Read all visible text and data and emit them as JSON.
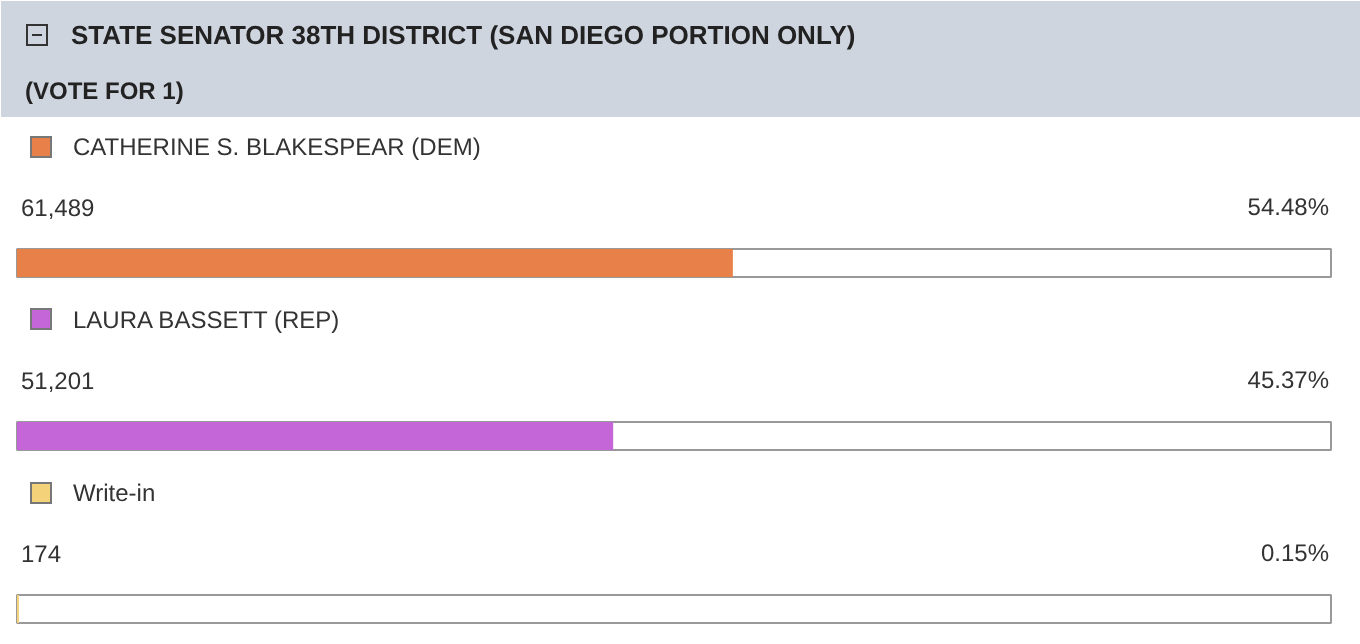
{
  "chart_data": {
    "type": "bar",
    "orientation": "horizontal",
    "title": "STATE SENATOR 38TH DISTRICT (SAN DIEGO PORTION ONLY)",
    "subtitle": "(VOTE FOR 1)",
    "categories": [
      "CATHERINE S. BLAKESPEAR (DEM)",
      "LAURA BASSETT (REP)",
      "Write-in"
    ],
    "values": [
      54.48,
      45.37,
      0.15
    ],
    "colors": [
      "#e8804a",
      "#c566d8",
      "#f3d27a"
    ],
    "value_labels": [
      "54.48%",
      "45.37%",
      "0.15%"
    ],
    "xlim": [
      0,
      100
    ],
    "tick_labels": false,
    "annotations": [
      "61,489",
      "51,201",
      "174"
    ]
  }
}
